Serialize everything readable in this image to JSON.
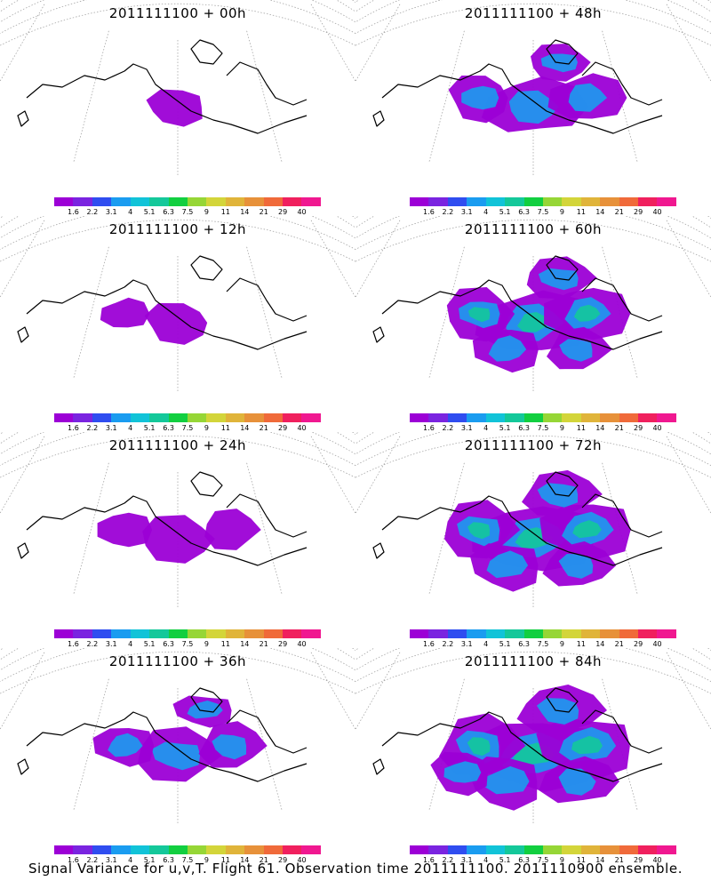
{
  "panels": [
    {
      "title": "2011111100 + 00h",
      "coverage": 0.12
    },
    {
      "title": "2011111100 + 48h",
      "coverage": 0.55
    },
    {
      "title": "2011111100 + 12h",
      "coverage": 0.2
    },
    {
      "title": "2011111100 + 60h",
      "coverage": 0.7
    },
    {
      "title": "2011111100 + 24h",
      "coverage": 0.32
    },
    {
      "title": "2011111100 + 72h",
      "coverage": 0.8
    },
    {
      "title": "2011111100 + 36h",
      "coverage": 0.45
    },
    {
      "title": "2011111100 + 84h",
      "coverage": 0.9
    }
  ],
  "colorbar": {
    "colors": [
      "#9c00d6",
      "#7a24e0",
      "#2f4df0",
      "#1a9cf0",
      "#11c3d8",
      "#14c89a",
      "#12cf40",
      "#96d636",
      "#d3d53a",
      "#e0b43a",
      "#e7913a",
      "#f06a3a",
      "#f0205e",
      "#f01890"
    ],
    "labels": [
      "1.6",
      "2.2",
      "3.1",
      "4",
      "5.1",
      "6.3",
      "7.5",
      "9",
      "11",
      "14",
      "21",
      "29",
      "40"
    ]
  },
  "caption": "Signal Variance for u,v,T. Flight 61. Observation time 2011111100. 2011110900 ensemble."
}
